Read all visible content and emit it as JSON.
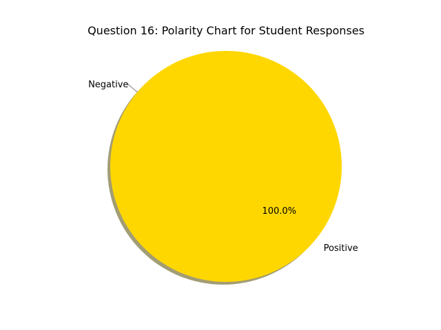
{
  "chart_data": {
    "type": "pie",
    "title": "Question 16: Polarity Chart for Student Responses",
    "slices": [
      {
        "label": "Negative",
        "value": 0.0,
        "pct_label": "0.0%",
        "color": "#808080"
      },
      {
        "label": "Positive",
        "value": 100.0,
        "pct_label": "100.0%",
        "color": "#ffd700"
      }
    ],
    "shadow": true,
    "start_angle_deg": 140
  }
}
